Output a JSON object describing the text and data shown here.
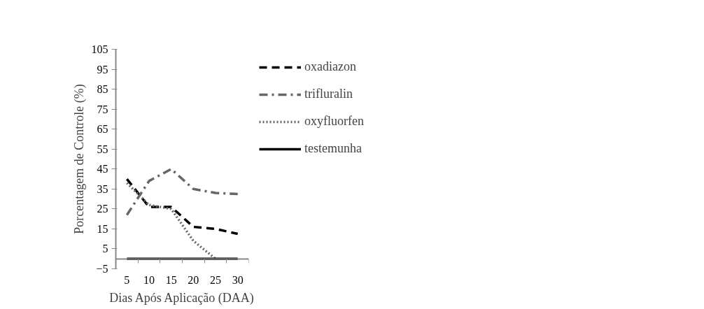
{
  "chart_data": {
    "type": "line",
    "xlabel": "Dias Após Aplicação (DAA)",
    "ylabel": "Porcentagem de Controle (%)",
    "categories": [
      "5",
      "10",
      "15",
      "20",
      "25",
      "30"
    ],
    "series": [
      {
        "name": "oxadiazon",
        "color": "#000000",
        "line_style": "dashed",
        "values": [
          40,
          26,
          26,
          16,
          15,
          12.5
        ]
      },
      {
        "name": "trifluralin",
        "color": "#666666",
        "line_style": "dashdot",
        "values": [
          22,
          39,
          45,
          35,
          33,
          32.5
        ]
      },
      {
        "name": "oxyfluorfen",
        "color": "#666666",
        "line_style": "dotted",
        "values": [
          38,
          27,
          25,
          9,
          0,
          null
        ]
      },
      {
        "name": "testemunha",
        "color": "#000000",
        "line_style": "solid",
        "values": [
          0,
          0,
          0,
          0,
          0,
          0
        ]
      }
    ],
    "ylim": [
      -5,
      105
    ],
    "yticks": [
      -5,
      5,
      15,
      25,
      35,
      45,
      55,
      65,
      75,
      85,
      95,
      105
    ],
    "grid": false,
    "legend": "right",
    "marker": "none"
  }
}
